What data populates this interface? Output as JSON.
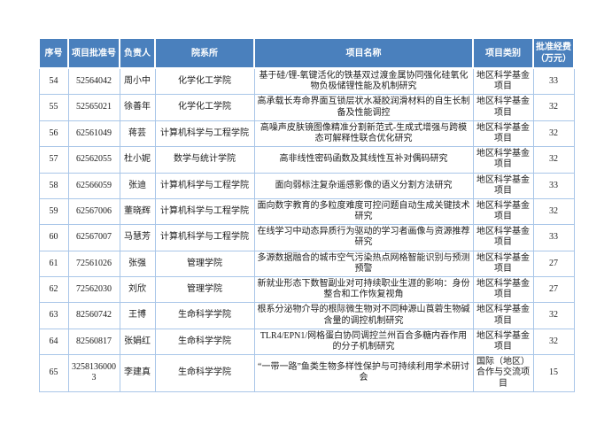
{
  "colors": {
    "header_bg": "#4a80bd",
    "header_text": "#ffffff",
    "cell_border": "#a9c6e8",
    "body_text": "#1c1c1c",
    "page_bg": "#ffffff"
  },
  "table": {
    "headers": [
      "序号",
      "项目批准号",
      "负责人",
      "院系所",
      "项目名称",
      "项目类别",
      "批准经费（万元）"
    ],
    "rows": [
      {
        "seq": "54",
        "approval_no": "52564042",
        "leader": "周小中",
        "department": "化学化工学院",
        "project_name": "基于硅/锂-氧键活化的铁基双过渡金属协同强化硅氧化物负极储锂性能及机制研究",
        "category": "地区科学基金项目",
        "funding": "33"
      },
      {
        "seq": "55",
        "approval_no": "52565021",
        "leader": "徐善年",
        "department": "化学化工学院",
        "project_name": "高承载长寿命界面互锁层状水凝胶润滑材料的自生长制备及性能调控",
        "category": "地区科学基金项目",
        "funding": "32"
      },
      {
        "seq": "56",
        "approval_no": "62561049",
        "leader": "蒋芸",
        "department": "计算机科学与工程学院",
        "project_name": "高噪声皮肤镜图像精准分割新范式-生成式增强与跨模态可解释性联合优化研究",
        "category": "地区科学基金项目",
        "funding": "32"
      },
      {
        "seq": "57",
        "approval_no": "62562055",
        "leader": "杜小妮",
        "department": "数学与统计学院",
        "project_name": "高非线性密码函数及其线性互补对偶码研究",
        "category": "地区科学基金项目",
        "funding": "32"
      },
      {
        "seq": "58",
        "approval_no": "62566059",
        "leader": "张迪",
        "department": "计算机科学与工程学院",
        "project_name": "面向弱标注复杂遥感影像的语义分割方法研究",
        "category": "地区科学基金项目",
        "funding": "33"
      },
      {
        "seq": "59",
        "approval_no": "62567006",
        "leader": "董晓辉",
        "department": "计算机科学与工程学院",
        "project_name": "面向数字教育的多粒度难度可控问题自动生成关键技术研究",
        "category": "地区科学基金项目",
        "funding": "32"
      },
      {
        "seq": "60",
        "approval_no": "62567007",
        "leader": "马慧芳",
        "department": "计算机科学与工程学院",
        "project_name": "在线学习中动态异质行为驱动的学习者画像与资源推荐研究",
        "category": "地区科学基金项目",
        "funding": "33"
      },
      {
        "seq": "61",
        "approval_no": "72561026",
        "leader": "张强",
        "department": "管理学院",
        "project_name": "多源数据融合的城市空气污染热点网格智能识别与预测预警",
        "category": "地区科学基金项目",
        "funding": "27"
      },
      {
        "seq": "62",
        "approval_no": "72562030",
        "leader": "刘欣",
        "department": "管理学院",
        "project_name": "新就业形态下数智副业对可持续职业生涯的影响：身份整合和工作恢复视角",
        "category": "地区科学基金项目",
        "funding": "27"
      },
      {
        "seq": "63",
        "approval_no": "82560742",
        "leader": "王博",
        "department": "生命科学学院",
        "project_name": "根系分泌物介导的根际微生物对不同种源山莨菪生物碱含量的调控机制研究",
        "category": "地区科学基金项目",
        "funding": "32"
      },
      {
        "seq": "64",
        "approval_no": "82560817",
        "leader": "张娟红",
        "department": "生命科学学院",
        "project_name": "TLR4/EPN1/网格蛋白协同调控兰州百合多糖内吞作用的分子机制研究",
        "category": "地区科学基金项目",
        "funding": "32"
      },
      {
        "seq": "65",
        "approval_no": "32581360003",
        "leader": "李建真",
        "department": "生命科学学院",
        "project_name": "“一带一路”鱼类生物多样性保护与可持续利用学术研讨会",
        "category": "国际（地区）合作与交流项目",
        "funding": "15"
      }
    ]
  }
}
